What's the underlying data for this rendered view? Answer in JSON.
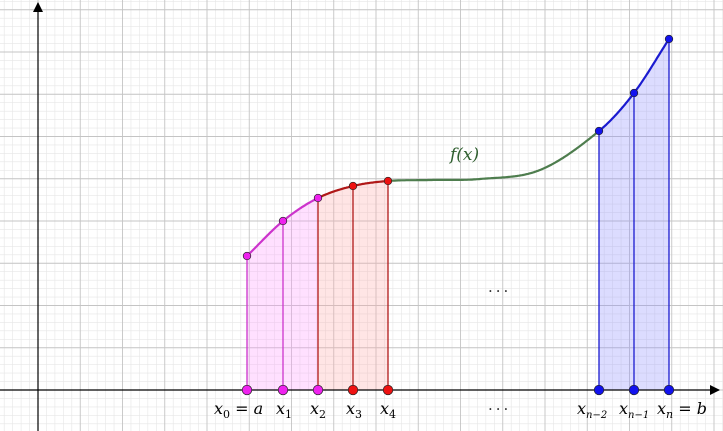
{
  "colors": {
    "grid_minor": "#e6e6e6",
    "grid_major": "#c4c4c4",
    "axis": "#000000",
    "curve_green": "#4e7d4e",
    "segment1_line": "#cc33cc",
    "segment1_fill": "#ff99ff",
    "segment1_point": "#ee22ee",
    "segment2_line": "#b01818",
    "segment2_fill": "#ffaaaa",
    "segment2_point": "#ee1111",
    "segment3_line": "#1a1ad0",
    "segment3_fill": "#8c8cff",
    "segment3_point": "#1212ee"
  },
  "labels": {
    "function": "f(x)",
    "x0_main": "x",
    "x0_sub": "0",
    "x0_suffix": " = a",
    "x1_main": "x",
    "x1_sub": "1",
    "x2_main": "x",
    "x2_sub": "2",
    "x3_main": "x",
    "x3_sub": "3",
    "x4_main": "x",
    "x4_sub": "4",
    "xn2_main": "x",
    "xn2_sub": "n−2",
    "xn1_main": "x",
    "xn1_sub": "n−1",
    "xn_main": "x",
    "xn_sub": "n",
    "xn_suffix": " = b",
    "ellipsis_upper": "...",
    "ellipsis_lower": "..."
  },
  "chart_data": {
    "type": "diagram",
    "points_x": [
      "x0 = a",
      "x1",
      "x2",
      "x3",
      "x4",
      "xn−2",
      "xn−1",
      "xn = b"
    ]
  }
}
